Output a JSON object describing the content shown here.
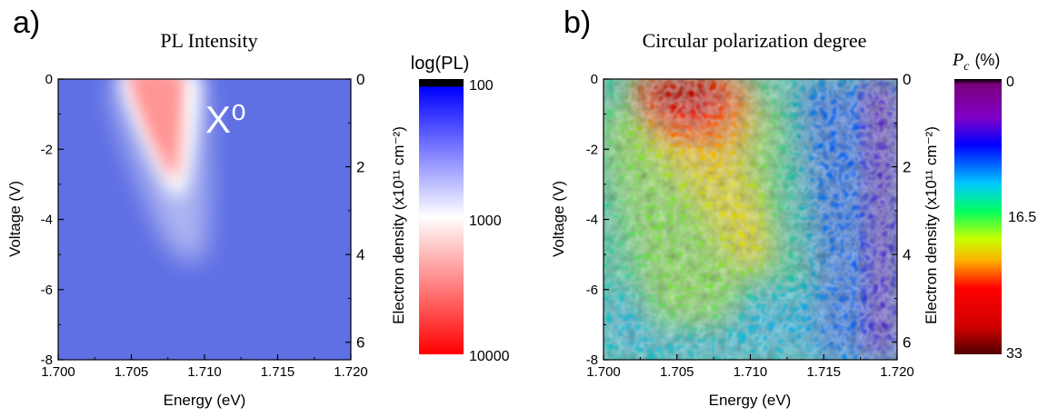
{
  "panels": {
    "a": {
      "letter": "a)",
      "title": "PL Intensity"
    },
    "b": {
      "letter": "b)",
      "title": "Circular polarization degree"
    }
  },
  "chart_data": [
    {
      "type": "heatmap",
      "title": "PL Intensity",
      "panel_letter": "a)",
      "xlabel": "Energy (eV)",
      "ylabel": "Voltage (V)",
      "y2label": "Electron density (x10¹¹ cm⁻²)",
      "xlim": [
        1.7,
        1.72
      ],
      "ylim": [
        -8,
        0
      ],
      "xticks": [
        "1.700",
        "1.705",
        "1.710",
        "1.715",
        "1.720"
      ],
      "xtick_values": [
        1.7,
        1.705,
        1.71,
        1.715,
        1.72
      ],
      "yticks": [
        "0",
        "-2",
        "-4",
        "-6",
        "-8"
      ],
      "ytick_values": [
        0,
        -2,
        -4,
        -6,
        -8
      ],
      "y2ticks": [
        "0",
        "2",
        "4",
        "6"
      ],
      "y2tick_voltages": [
        0,
        -2.5,
        -5,
        -7.5
      ],
      "annotation": "X⁰",
      "features": {
        "peak_center_energy_at_0V": 1.7065,
        "peak_halfwidth_at_0V": 0.0025,
        "peak_center_energy_at_-4V": 1.709,
        "tail_end_voltage": -5.5
      },
      "colorbar": {
        "label": "log(PL)",
        "ticks": [
          "100",
          "1000",
          "10000"
        ],
        "colors": [
          "#000000",
          "#0000ff",
          "#ffffff",
          "#ff0000"
        ]
      }
    },
    {
      "type": "heatmap",
      "title": "Circular polarization degree",
      "panel_letter": "b)",
      "xlabel": "Energy (eV)",
      "ylabel": "Voltage (V)",
      "y2label": "Electron density (x10¹¹ cm⁻²)",
      "xlim": [
        1.7,
        1.72
      ],
      "ylim": [
        -8,
        0
      ],
      "xticks": [
        "1.700",
        "1.705",
        "1.710",
        "1.715",
        "1.720"
      ],
      "xtick_values": [
        1.7,
        1.705,
        1.71,
        1.715,
        1.72
      ],
      "yticks": [
        "0",
        "-2",
        "-4",
        "-6",
        "-8"
      ],
      "ytick_values": [
        0,
        -2,
        -4,
        -6,
        -8
      ],
      "y2ticks": [
        "0",
        "2",
        "4",
        "6"
      ],
      "y2tick_voltages": [
        0,
        -2.5,
        -5,
        -7.5
      ],
      "features": {
        "max_pc_region_energy": 1.706,
        "max_pc_region_voltage": -0.8,
        "max_pc_percent": 33,
        "background_pc_percent": 12
      },
      "colorbar": {
        "label_symbol": "P",
        "label_sub": "c",
        "label_unit": "(%)",
        "ticks": [
          "0",
          "16.5",
          "33"
        ],
        "tick_values": [
          0,
          16.5,
          33
        ],
        "colors": [
          "#000000",
          "#8000a0",
          "#0000ff",
          "#00c8ff",
          "#00ff60",
          "#c8ff00",
          "#ffb000",
          "#ff0000",
          "#600000"
        ]
      }
    }
  ]
}
